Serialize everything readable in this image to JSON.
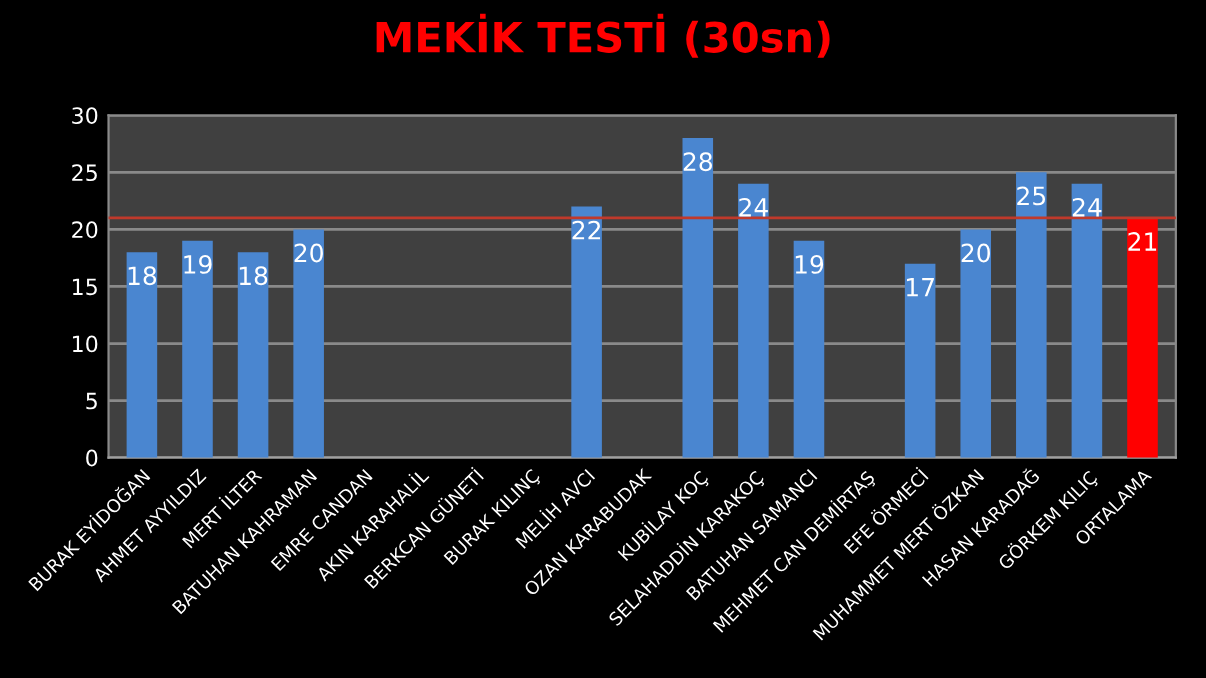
{
  "chart_data": {
    "type": "bar",
    "title": "MEKİK TESTİ (30sn)",
    "categories": [
      "BURAK EYİDOĞAN",
      "AHMET AYYILDIZ",
      "MERT İLTER",
      "BATUHAN KAHRAMAN",
      "EMRE CANDAN",
      "AKIN KARAHALİL",
      "BERKCAN GÜNETİ",
      "BURAK KILINÇ",
      "MELİH AVCI",
      "OZAN KARABUDAK",
      "KUBİLAY KOÇ",
      "SELAHADDİN KARAKOÇ",
      "BATUHAN SAMANCI",
      "MEHMET CAN DEMİRTAŞ",
      "EFE ÖRMECİ",
      "MUHAMMET MERT ÖZKAN",
      "HASAN KARADAĞ",
      "GÖRKEM KILIÇ",
      "ORTALAMA"
    ],
    "values": [
      18,
      19,
      18,
      20,
      null,
      null,
      null,
      null,
      22,
      null,
      28,
      24,
      19,
      null,
      17,
      20,
      25,
      24,
      21
    ],
    "colors": [
      "#4a86d0",
      "#4a86d0",
      "#4a86d0",
      "#4a86d0",
      "#4a86d0",
      "#4a86d0",
      "#4a86d0",
      "#4a86d0",
      "#4a86d0",
      "#4a86d0",
      "#4a86d0",
      "#4a86d0",
      "#4a86d0",
      "#4a86d0",
      "#4a86d0",
      "#4a86d0",
      "#4a86d0",
      "#4a86d0",
      "#ff0000"
    ],
    "ylim": [
      0,
      30
    ],
    "yticks": [
      0,
      5,
      10,
      15,
      20,
      25,
      30
    ],
    "grid": "y",
    "data_labels": true,
    "ref_lines": [
      {
        "axis": "y",
        "value": 21,
        "color": "#c0392b"
      }
    ]
  }
}
